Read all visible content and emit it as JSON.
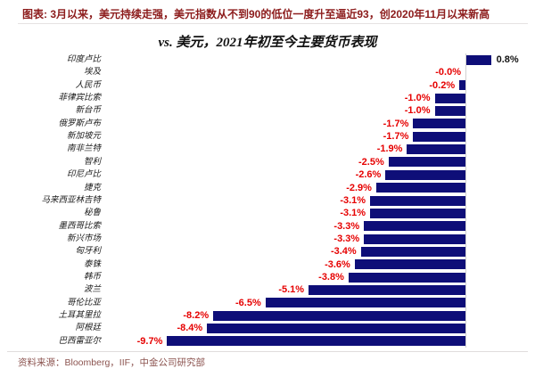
{
  "header": {
    "title": "图表: 3月以来，美元持续走强，美元指数从不到90的低位一度升至逼近93，创2020年11月以来新高"
  },
  "chart_data": {
    "type": "bar",
    "orientation": "horizontal",
    "title": "vs. 美元，2021年初至今主要货币表现",
    "xlabel": "",
    "ylabel": "",
    "xlim": [
      -10.5,
      1.5
    ],
    "grid": false,
    "unit": "%",
    "bar_color": "#0e0e78",
    "negative_label_color": "#e60000",
    "positive_label_color": "#111111",
    "categories": [
      "印度卢比",
      "埃及",
      "人民币",
      "菲律宾比索",
      "新台币",
      "俄罗斯卢布",
      "新加坡元",
      "南非兰特",
      "智利",
      "印尼卢比",
      "捷克",
      "马来西亚林吉特",
      "秘鲁",
      "墨西哥比索",
      "新兴市场",
      "匈牙利",
      "泰铢",
      "韩币",
      "波兰",
      "哥伦比亚",
      "土耳其里拉",
      "阿根廷",
      "巴西雷亚尔"
    ],
    "values": [
      0.8,
      -0.0,
      -0.2,
      -1.0,
      -1.0,
      -1.7,
      -1.7,
      -1.9,
      -2.5,
      -2.6,
      -2.9,
      -3.1,
      -3.1,
      -3.3,
      -3.3,
      -3.4,
      -3.6,
      -3.8,
      -5.1,
      -6.5,
      -8.2,
      -8.4,
      -9.7
    ],
    "labels": [
      "0.8%",
      "-0.0%",
      "-0.2%",
      "-1.0%",
      "-1.0%",
      "-1.7%",
      "-1.7%",
      "-1.9%",
      "-2.5%",
      "-2.6%",
      "-2.9%",
      "-3.1%",
      "-3.1%",
      "-3.3%",
      "-3.3%",
      "-3.4%",
      "-3.6%",
      "-3.8%",
      "-5.1%",
      "-6.5%",
      "-8.2%",
      "-8.4%",
      "-9.7%"
    ]
  },
  "footer": {
    "source": "资料来源：Bloomberg，IIF，中金公司研究部"
  }
}
